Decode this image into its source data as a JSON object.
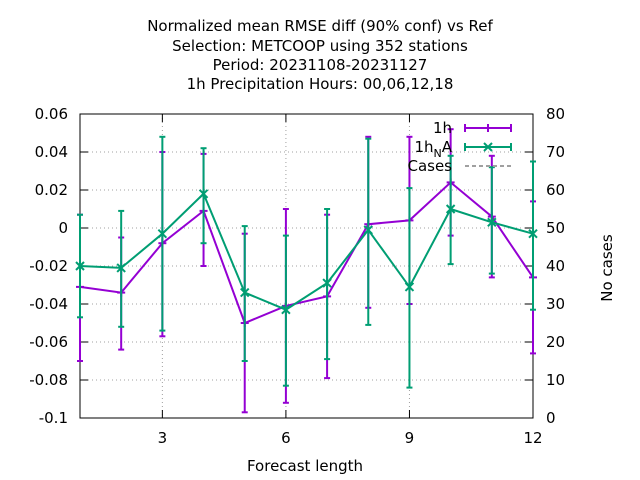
{
  "chart_data": {
    "type": "line",
    "title_lines": [
      "Normalized mean RMSE diff (90% conf) vs Ref",
      "Selection: METCOOP using   352 stations",
      "Period: 20231108-20231127",
      "1h Precipitation   Hours:  00,06,12,18"
    ],
    "xlabel": "Forecast length",
    "ylabel": "",
    "y2label": "No cases",
    "xlim": [
      1,
      12
    ],
    "ylim": [
      -0.1,
      0.06
    ],
    "y2lim": [
      0,
      80
    ],
    "x_ticks": [
      3,
      6,
      9,
      12
    ],
    "y_ticks": [
      "0.06",
      "0.04",
      "0.02",
      "0",
      "-0.02",
      "-0.04",
      "-0.06",
      "-0.08",
      "-0.1"
    ],
    "y_tick_values": [
      0.06,
      0.04,
      0.02,
      0,
      -0.02,
      -0.04,
      -0.06,
      -0.08,
      -0.1
    ],
    "y2_ticks": [
      "80",
      "70",
      "60",
      "50",
      "40",
      "30",
      "20",
      "10",
      "0"
    ],
    "y2_tick_values": [
      80,
      70,
      60,
      50,
      40,
      30,
      20,
      10,
      0
    ],
    "grid": true,
    "legend_position": "top-right",
    "legend_labels": [
      "1h",
      "1h_NA",
      "Cases"
    ],
    "series": [
      {
        "name": "1h",
        "color": "#9400d3",
        "x": [
          1,
          2,
          3,
          4,
          5,
          6,
          7,
          8,
          9,
          10,
          11,
          12
        ],
        "y": [
          -0.031,
          -0.034,
          -0.008,
          0.009,
          -0.05,
          -0.041,
          -0.036,
          0.002,
          0.004,
          0.024,
          0.006,
          -0.026
        ],
        "lo": [
          -0.07,
          -0.064,
          -0.057,
          -0.02,
          -0.097,
          -0.092,
          -0.079,
          -0.042,
          -0.04,
          -0.004,
          -0.026,
          -0.066
        ],
        "hi": [
          0.007,
          -0.005,
          0.04,
          0.039,
          -0.003,
          0.01,
          0.007,
          0.048,
          0.048,
          0.052,
          0.038,
          0.014
        ]
      },
      {
        "name": "1h_NA",
        "color": "#009e73",
        "x": [
          1,
          2,
          3,
          4,
          5,
          6,
          7,
          8,
          9,
          10,
          11,
          12
        ],
        "y": [
          -0.02,
          -0.021,
          -0.003,
          0.018,
          -0.034,
          -0.043,
          -0.029,
          -0.001,
          -0.031,
          0.01,
          0.003,
          -0.003
        ],
        "lo": [
          -0.047,
          -0.052,
          -0.054,
          -0.008,
          -0.07,
          -0.083,
          -0.069,
          -0.051,
          -0.084,
          -0.019,
          -0.024,
          -0.043
        ],
        "hi": [
          0.007,
          0.009,
          0.048,
          0.042,
          0.001,
          -0.004,
          0.01,
          0.047,
          0.021,
          0.038,
          0.032,
          0.035
        ]
      }
    ],
    "cases_color": "#a0a0a0"
  }
}
